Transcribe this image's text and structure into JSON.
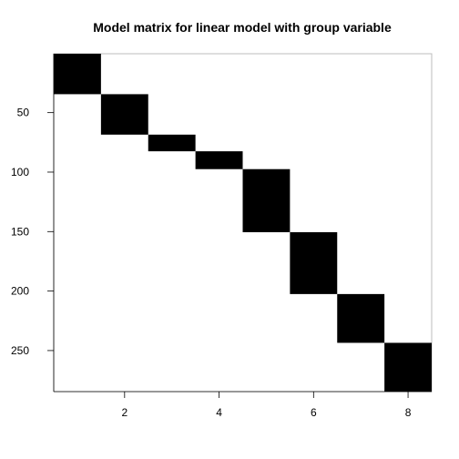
{
  "chart_data": {
    "type": "heatmap",
    "title": "Model matrix for linear model with group variable",
    "xlabel": "",
    "ylabel": "",
    "n_rows": 284,
    "n_cols": 8,
    "x_ticks": [
      2,
      4,
      6,
      8
    ],
    "y_ticks": [
      50,
      100,
      150,
      200,
      250
    ],
    "xlim": [
      0.5,
      8.5
    ],
    "ylim": [
      0.5,
      284.5
    ],
    "y_reversed": true,
    "blocks": [
      {
        "column": 1,
        "row_start": 1,
        "row_end": 34
      },
      {
        "column": 2,
        "row_start": 35,
        "row_end": 68
      },
      {
        "column": 3,
        "row_start": 69,
        "row_end": 82
      },
      {
        "column": 4,
        "row_start": 83,
        "row_end": 97
      },
      {
        "column": 5,
        "row_start": 98,
        "row_end": 150
      },
      {
        "column": 6,
        "row_start": 151,
        "row_end": 202
      },
      {
        "column": 7,
        "row_start": 203,
        "row_end": 243
      },
      {
        "column": 8,
        "row_start": 244,
        "row_end": 284
      }
    ],
    "fill_color": "#000000",
    "background_color": "#ffffff",
    "frame_color": "#bebebe"
  }
}
